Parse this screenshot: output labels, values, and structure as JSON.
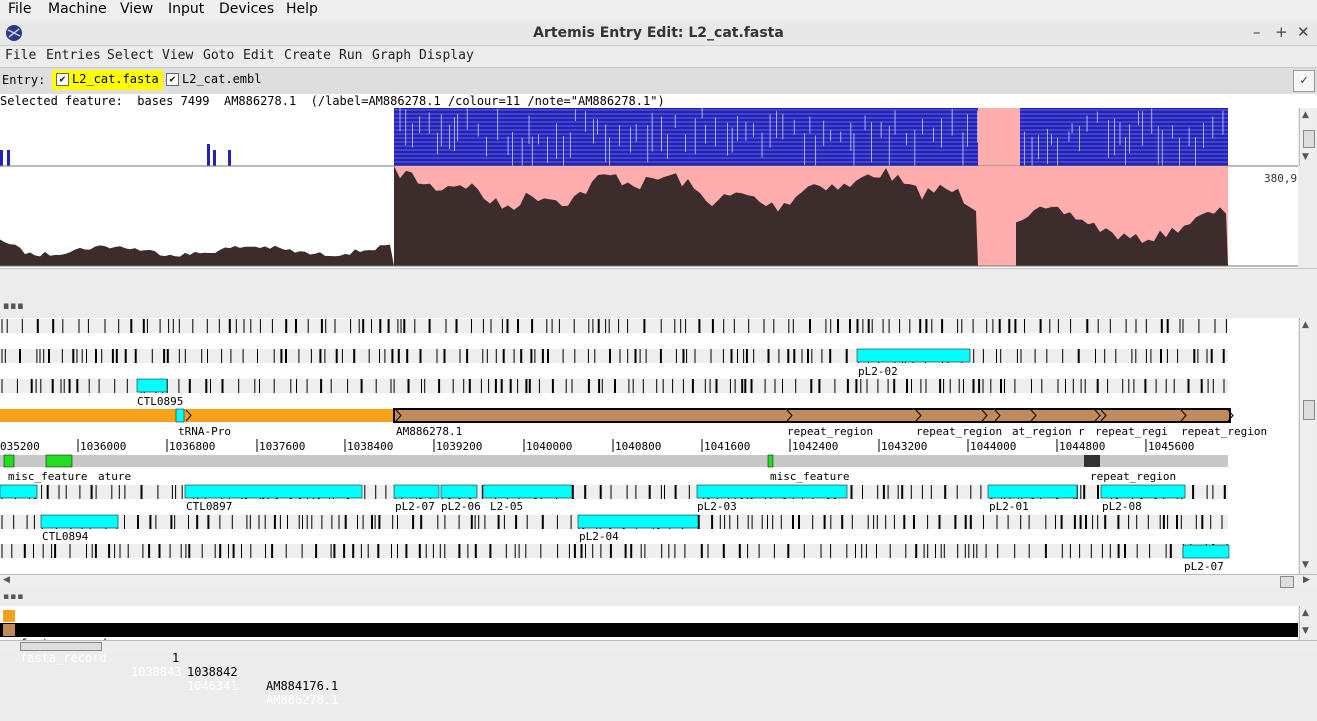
{
  "vbox_menu": [
    "File",
    "Machine",
    "View",
    "Input",
    "Devices",
    "Help"
  ],
  "window": {
    "title": "Artemis Entry Edit: L2_cat.fasta",
    "controls": [
      "–",
      "+",
      "✕"
    ]
  },
  "app_menu": [
    "File",
    "Entries",
    "Select",
    "View",
    "Goto",
    "Edit",
    "Create",
    "Run",
    "Graph",
    "Display"
  ],
  "entry_bar": {
    "label": "Entry:",
    "entries": [
      {
        "name": "L2_cat.fasta",
        "checked": true,
        "highlight": "#ffff00"
      },
      {
        "name": "L2_cat.embl",
        "checked": true
      }
    ]
  },
  "selected_feature": "Selected feature:  bases 7499  AM886278.1  (/label=AM886278.1 /colour=11 /note=\"AM886278.1\")",
  "graph_value": "380,9",
  "ruler_labels": [
    "035200",
    "1036000",
    "1036800",
    "1037600",
    "1038400",
    "1039200",
    "1040000",
    "1040800",
    "1041600",
    "1042400",
    "1043200",
    "1044000",
    "1044800",
    "1045600"
  ],
  "feature_labels": {
    "forward_3": [
      "pL2-02"
    ],
    "forward_1": [
      "CTL0895"
    ],
    "sequence": [
      "tRNA-Pro",
      "AM886278.1",
      "repeat_region",
      "repeat_region",
      "at_region",
      "r",
      "repeat_regi",
      "repeat_region"
    ],
    "misc": [
      "misc_feature",
      "ature",
      "misc_feature",
      "repeat_region"
    ],
    "reverse_1": [
      "CTL0897",
      "pL2-07",
      "pL2-06",
      "L2-05",
      "pL2-03",
      "pL2-01",
      "pL2-08"
    ],
    "reverse_2": [
      "CTL0894",
      "pL2-04"
    ],
    "reverse_3": [
      "pL2-07"
    ]
  },
  "entry_list": [
    {
      "key": "fasta_record",
      "start": "1",
      "end": "1038842",
      "id": "AM884176.1",
      "colour": "#f7a21b",
      "selected": false
    },
    {
      "key": "fasta_record",
      "start": "1038843",
      "end": "1046341",
      "id": "AM886278.1",
      "colour": "#c08a5a",
      "selected": true
    }
  ],
  "colors": {
    "cds": "#00ffff",
    "orange": "#f7a21b",
    "brown": "#c08a5a",
    "blue": "#2222bb",
    "pink": "#ffadad",
    "dark": "#3d2c2c",
    "green": "#22dd22"
  }
}
